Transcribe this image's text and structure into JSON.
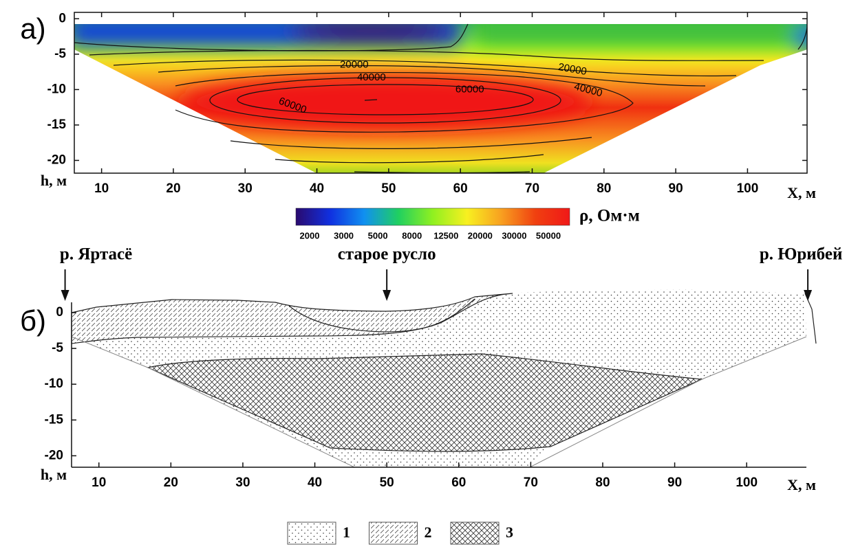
{
  "chart_data": [
    {
      "type": "contour",
      "panel_label": "а)",
      "xlabel": "X, м",
      "ylabel": "h, м",
      "xlim": [
        6.2,
        108.3
      ],
      "ylim": [
        -21.8,
        0.9
      ],
      "xticks": [
        10,
        20,
        30,
        40,
        50,
        60,
        70,
        80,
        90,
        100
      ],
      "yticks": [
        0,
        -5,
        -10,
        -15,
        -20
      ],
      "contour_labels": [
        {
          "value": 20000,
          "x": 45.2,
          "y": -6.5
        },
        {
          "value": 40000,
          "x": 47.6,
          "y": -8.3
        },
        {
          "value": 60000,
          "x": 61.3,
          "y": -10.0
        },
        {
          "value": 60000,
          "x": 36.6,
          "y": -12.3
        },
        {
          "value": 20000,
          "x": 75.6,
          "y": -7.2
        },
        {
          "value": 40000,
          "x": 77.8,
          "y": -10.1
        }
      ],
      "colorbar": {
        "label": "ρ, Ом·м",
        "ticks": [
          2000,
          3000,
          5000,
          8000,
          12500,
          20000,
          30000,
          50000
        ],
        "colors": [
          "#2a0a6e",
          "#1030e0",
          "#1090f0",
          "#20d060",
          "#90f020",
          "#f8f020",
          "#f8a020",
          "#f04010",
          "#f01818"
        ]
      }
    },
    {
      "type": "section",
      "panel_label": "б)",
      "xlabel": "X, м",
      "ylabel": "h, м",
      "xlim": [
        6.2,
        108.3
      ],
      "ylim": [
        -21.6,
        2.4
      ],
      "xticks": [
        10,
        20,
        30,
        40,
        50,
        60,
        70,
        80,
        90,
        100
      ],
      "yticks": [
        0,
        -5,
        -10,
        -15,
        -20
      ],
      "annotations": [
        {
          "text": "р. Яртасё",
          "x": 5.3
        },
        {
          "text": "старое русло",
          "x": 50
        },
        {
          "text": "р. Юрибей",
          "x": 108.5
        }
      ],
      "legend": [
        {
          "name": "1",
          "pattern": "dots"
        },
        {
          "name": "2",
          "pattern": "hatch"
        },
        {
          "name": "3",
          "pattern": "cross"
        }
      ]
    }
  ]
}
